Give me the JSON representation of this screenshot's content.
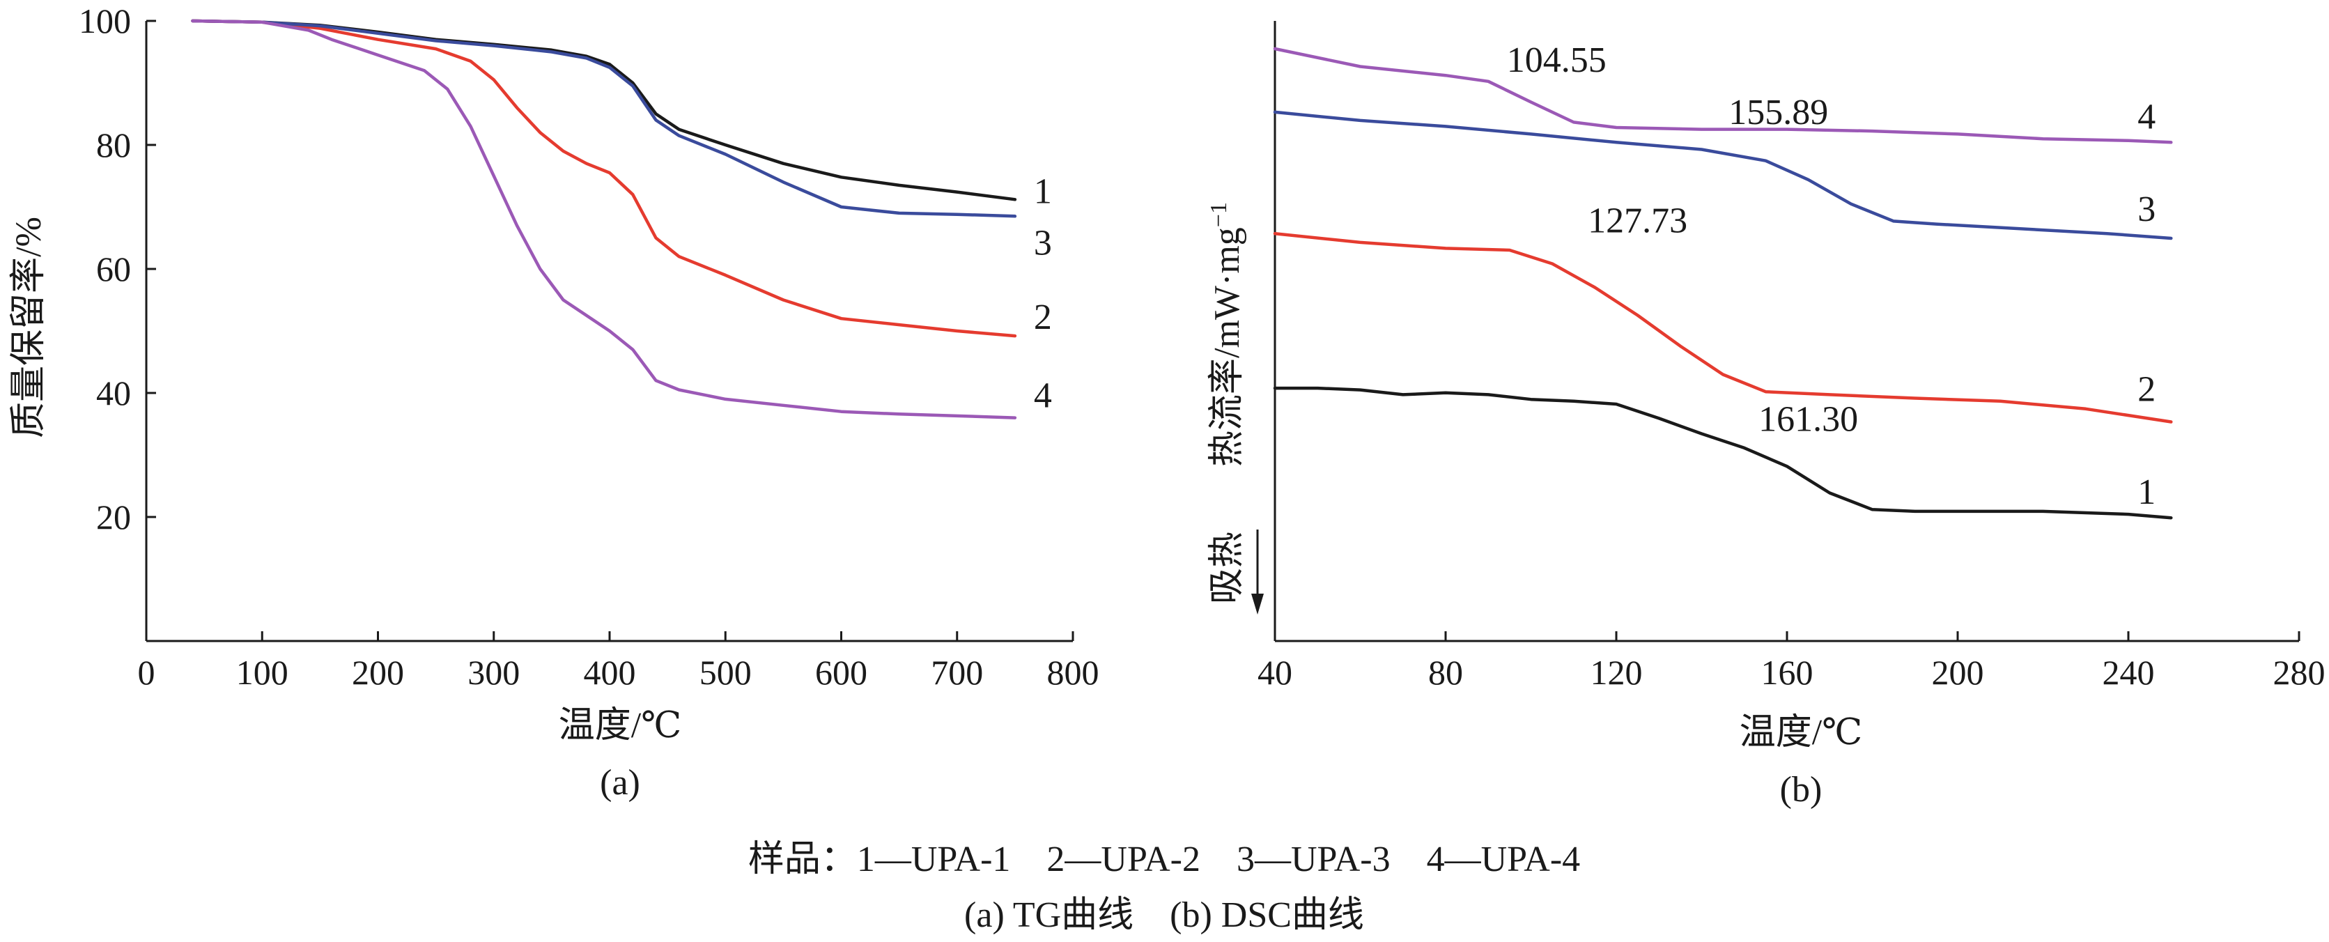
{
  "chart_data": [
    {
      "id": "tg",
      "type": "line",
      "title": "",
      "xlabel": "温度/℃",
      "ylabel": "质量保留率/%",
      "subplot_label": "(a)",
      "xlim": [
        0,
        800
      ],
      "ylim": [
        0,
        100
      ],
      "xticks": [
        0,
        100,
        200,
        300,
        400,
        500,
        600,
        700,
        800
      ],
      "yticks": [
        20,
        40,
        60,
        80,
        100
      ],
      "grid": false,
      "legend": "none",
      "series": [
        {
          "label": "1",
          "color": "#1a1a1a",
          "points": [
            [
              40,
              100
            ],
            [
              100,
              99.8
            ],
            [
              150,
              99.3
            ],
            [
              200,
              98.2
            ],
            [
              250,
              97
            ],
            [
              300,
              96.2
            ],
            [
              350,
              95.3
            ],
            [
              380,
              94.3
            ],
            [
              400,
              93
            ],
            [
              420,
              90
            ],
            [
              440,
              85
            ],
            [
              460,
              82.5
            ],
            [
              500,
              80
            ],
            [
              550,
              77
            ],
            [
              600,
              74.8
            ],
            [
              650,
              73.5
            ],
            [
              700,
              72.4
            ],
            [
              750,
              71.2
            ]
          ]
        },
        {
          "label": "2",
          "color": "#e53b2f",
          "points": [
            [
              40,
              100
            ],
            [
              100,
              99.8
            ],
            [
              150,
              98.8
            ],
            [
              200,
              97
            ],
            [
              250,
              95.5
            ],
            [
              280,
              93.5
            ],
            [
              300,
              90.5
            ],
            [
              320,
              86
            ],
            [
              340,
              82
            ],
            [
              360,
              79
            ],
            [
              380,
              77
            ],
            [
              400,
              75.5
            ],
            [
              420,
              72
            ],
            [
              440,
              65
            ],
            [
              460,
              62
            ],
            [
              500,
              59
            ],
            [
              550,
              55
            ],
            [
              600,
              52
            ],
            [
              650,
              51
            ],
            [
              700,
              50
            ],
            [
              750,
              49.2
            ]
          ]
        },
        {
          "label": "3",
          "color": "#3a4b9c",
          "points": [
            [
              40,
              100
            ],
            [
              100,
              99.8
            ],
            [
              150,
              99.2
            ],
            [
              200,
              98
            ],
            [
              250,
              96.8
            ],
            [
              300,
              96
            ],
            [
              350,
              95
            ],
            [
              380,
              94
            ],
            [
              400,
              92.5
            ],
            [
              420,
              89.5
            ],
            [
              440,
              84
            ],
            [
              460,
              81.5
            ],
            [
              500,
              78.5
            ],
            [
              550,
              74
            ],
            [
              600,
              70
            ],
            [
              650,
              69
            ],
            [
              700,
              68.8
            ],
            [
              750,
              68.5
            ]
          ]
        },
        {
          "label": "4",
          "color": "#9b59b6",
          "points": [
            [
              40,
              100
            ],
            [
              100,
              99.8
            ],
            [
              140,
              98.5
            ],
            [
              160,
              97
            ],
            [
              200,
              94.5
            ],
            [
              240,
              92
            ],
            [
              260,
              89
            ],
            [
              280,
              83
            ],
            [
              300,
              75
            ],
            [
              320,
              67
            ],
            [
              340,
              60
            ],
            [
              360,
              55
            ],
            [
              380,
              52.5
            ],
            [
              400,
              50
            ],
            [
              420,
              47
            ],
            [
              440,
              42
            ],
            [
              460,
              40.5
            ],
            [
              500,
              39
            ],
            [
              550,
              38
            ],
            [
              600,
              37
            ],
            [
              650,
              36.6
            ],
            [
              700,
              36.3
            ],
            [
              750,
              36
            ]
          ]
        }
      ]
    },
    {
      "id": "dsc",
      "type": "line",
      "title": "",
      "xlabel": "温度/℃",
      "ylabel": "热流率/mW·mg",
      "ylabel_sup": "−1",
      "endo_label": "吸热",
      "subplot_label": "(b)",
      "xlim": [
        40,
        280
      ],
      "ylim": [
        0,
        10
      ],
      "xticks": [
        40,
        80,
        120,
        160,
        200,
        240,
        280
      ],
      "grid": false,
      "legend": "none",
      "series": [
        {
          "label": "1",
          "color": "#1a1a1a",
          "annotation": "161.30",
          "points": [
            [
              40,
              4.27
            ],
            [
              50,
              4.27
            ],
            [
              60,
              4.24
            ],
            [
              70,
              4.16
            ],
            [
              80,
              4.19
            ],
            [
              90,
              4.16
            ],
            [
              100,
              4.08
            ],
            [
              110,
              4.05
            ],
            [
              120,
              4.0
            ],
            [
              130,
              3.76
            ],
            [
              140,
              3.5
            ],
            [
              150,
              3.26
            ],
            [
              160,
              2.95
            ],
            [
              170,
              2.5
            ],
            [
              180,
              2.22
            ],
            [
              190,
              2.19
            ],
            [
              200,
              2.19
            ],
            [
              220,
              2.19
            ],
            [
              240,
              2.14
            ],
            [
              250,
              2.08
            ]
          ]
        },
        {
          "label": "2",
          "color": "#e53b2f",
          "annotation": "127.73",
          "points": [
            [
              40,
              6.88
            ],
            [
              60,
              6.73
            ],
            [
              80,
              6.63
            ],
            [
              95,
              6.6
            ],
            [
              105,
              6.37
            ],
            [
              115,
              5.97
            ],
            [
              125,
              5.5
            ],
            [
              135,
              4.98
            ],
            [
              145,
              4.5
            ],
            [
              155,
              4.21
            ],
            [
              170,
              4.16
            ],
            [
              190,
              4.1
            ],
            [
              210,
              4.05
            ],
            [
              230,
              3.92
            ],
            [
              250,
              3.7
            ]
          ]
        },
        {
          "label": "3",
          "color": "#3a4b9c",
          "annotation": "155.89",
          "points": [
            [
              40,
              8.93
            ],
            [
              60,
              8.79
            ],
            [
              80,
              8.69
            ],
            [
              100,
              8.56
            ],
            [
              120,
              8.42
            ],
            [
              140,
              8.3
            ],
            [
              155,
              8.11
            ],
            [
              165,
              7.79
            ],
            [
              175,
              7.38
            ],
            [
              185,
              7.09
            ],
            [
              195,
              7.04
            ],
            [
              215,
              6.96
            ],
            [
              235,
              6.88
            ],
            [
              250,
              6.8
            ]
          ]
        },
        {
          "label": "4",
          "color": "#9b59b6",
          "annotation": "104.55",
          "points": [
            [
              40,
              10.0
            ],
            [
              60,
              9.7
            ],
            [
              80,
              9.55
            ],
            [
              90,
              9.45
            ],
            [
              100,
              9.1
            ],
            [
              110,
              8.76
            ],
            [
              120,
              8.67
            ],
            [
              140,
              8.64
            ],
            [
              160,
              8.64
            ],
            [
              180,
              8.61
            ],
            [
              200,
              8.56
            ],
            [
              220,
              8.48
            ],
            [
              240,
              8.45
            ],
            [
              250,
              8.42
            ]
          ]
        }
      ]
    }
  ],
  "figure_caption": {
    "samples": "样品：1—UPA-1　2—UPA-2　3—UPA-3　4—UPA-4",
    "subtitles": "(a) TG曲线　(b) DSC曲线"
  }
}
